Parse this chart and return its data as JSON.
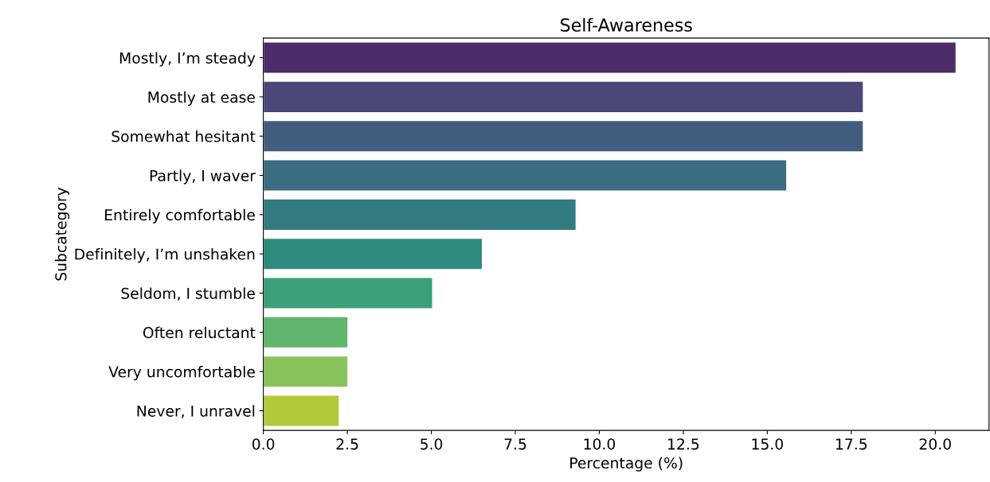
{
  "chart_data": {
    "type": "bar",
    "orientation": "horizontal",
    "title": "Self-Awareness",
    "xlabel": "Percentage (%)",
    "ylabel": "Subcategory",
    "categories": [
      "Mostly, I’m steady",
      "Mostly at ease",
      "Somewhat hesitant",
      "Partly, I waver",
      "Entirely comfortable",
      "Definitely, I’m unshaken",
      "Seldom, I stumble",
      "Often reluctant",
      "Very uncomfortable",
      "Never, I unravel"
    ],
    "values": [
      20.62,
      17.86,
      17.86,
      15.58,
      9.31,
      6.52,
      5.04,
      2.52,
      2.52,
      2.26
    ],
    "colors": [
      "#4c2c69",
      "#4a4779",
      "#425d80",
      "#3b6c82",
      "#327b80",
      "#2f8b7c",
      "#3ca078",
      "#60b56d",
      "#89c35c",
      "#b3c93b"
    ],
    "xlim": [
      0,
      21.6
    ],
    "xticks": [
      {
        "value": 0,
        "label": "0.0"
      },
      {
        "value": 2.5,
        "label": "2.5"
      },
      {
        "value": 5,
        "label": "5.0"
      },
      {
        "value": 7.5,
        "label": "7.5"
      },
      {
        "value": 10,
        "label": "10.0"
      },
      {
        "value": 12.5,
        "label": "12.5"
      },
      {
        "value": 15,
        "label": "15.0"
      },
      {
        "value": 17.5,
        "label": "17.5"
      },
      {
        "value": 20,
        "label": "20.0"
      }
    ],
    "grid": false,
    "legend": false
  }
}
